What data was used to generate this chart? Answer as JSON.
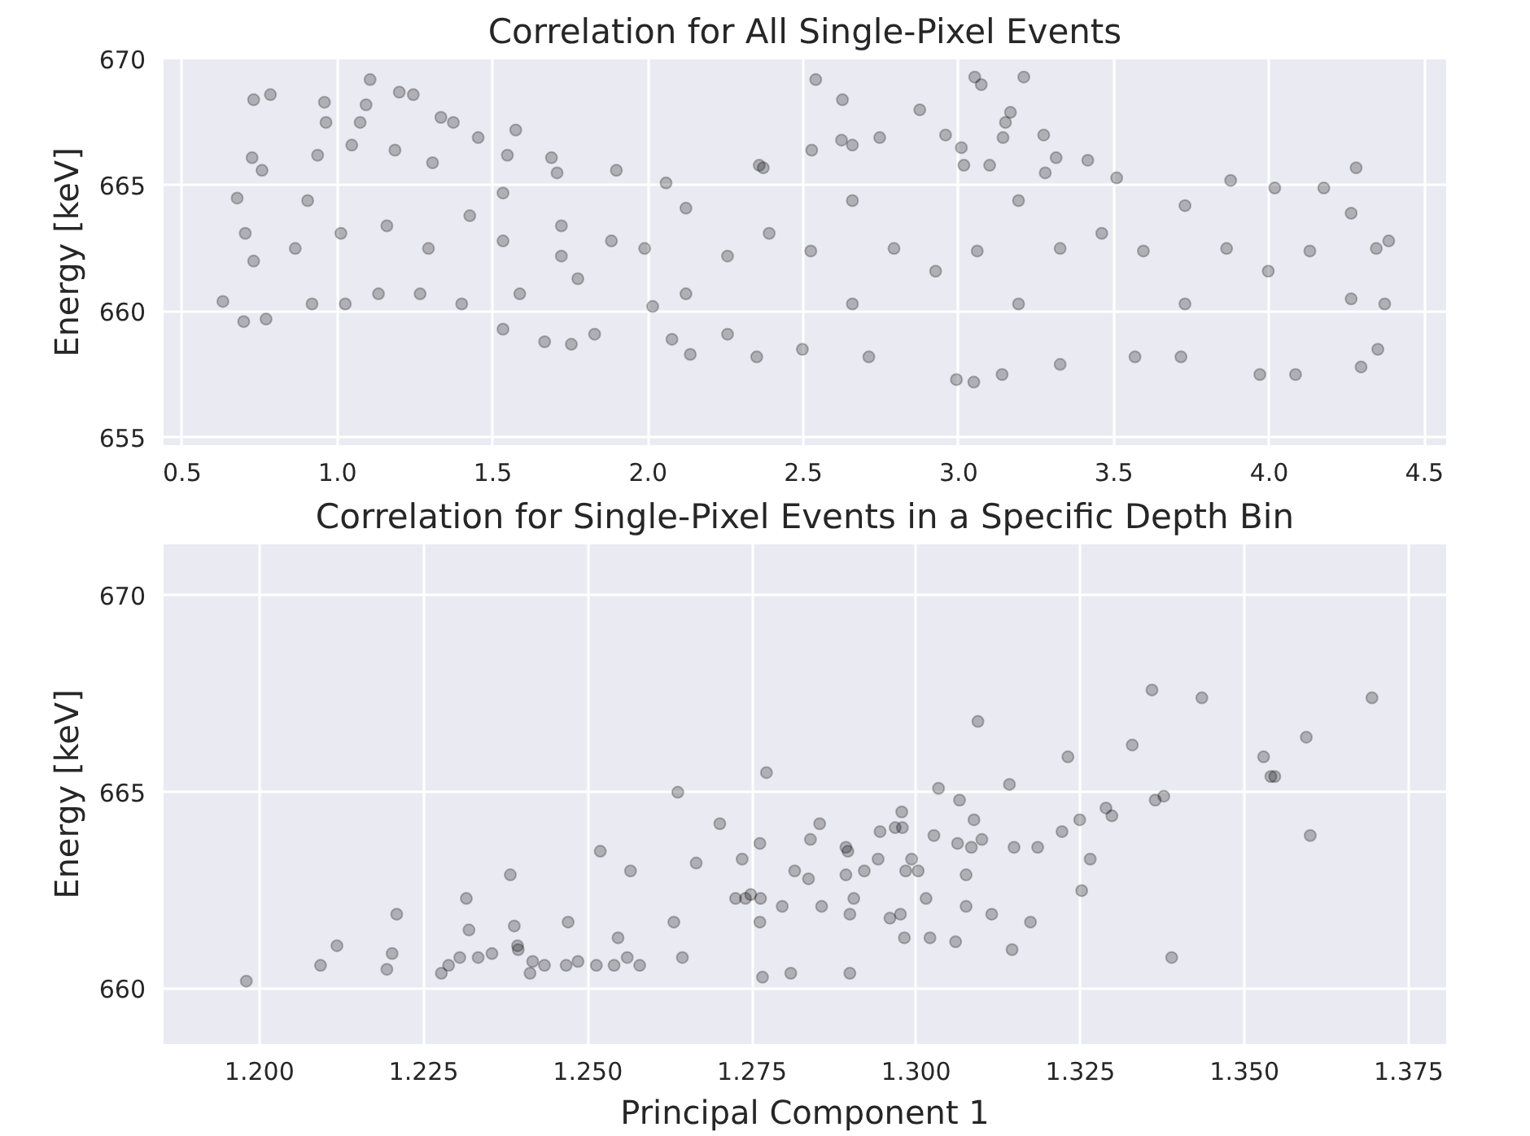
{
  "chart_data": [
    {
      "type": "scatter",
      "title": "Correlation for All Single-Pixel Events",
      "ylabel": "Energy [keV]",
      "xlim": [
        0.44,
        4.57
      ],
      "ylim": [
        654.7,
        670
      ],
      "xticks": [
        0.5,
        {
          "value": 1,
          "label": "1.0"
        },
        1.5,
        {
          "value": 2,
          "label": "2.0"
        },
        2.5,
        {
          "value": 3,
          "label": "3.0"
        },
        3.5,
        {
          "value": 4,
          "label": "4.0"
        },
        4.5
      ],
      "yticks": [
        655,
        660,
        665,
        670
      ],
      "grid": true,
      "marker": "circle",
      "series": [
        {
          "color": "#000000",
          "x": [
            0.73,
            0.784,
            0.725,
            0.757,
            0.631,
            0.698,
            0.77,
            0.677,
            0.703,
            0.73,
            0.958,
            0.963,
            0.936,
            0.904,
            0.864,
            0.918,
            1.105,
            1.092,
            1.073,
            1.046,
            1.011,
            1.025,
            1.199,
            1.244,
            1.185,
            1.159,
            1.132,
            1.333,
            1.373,
            1.306,
            1.293,
            1.266,
            1.453,
            1.426,
            1.4,
            1.574,
            1.547,
            1.533,
            1.533,
            1.533,
            1.587,
            1.689,
            1.707,
            1.667,
            1.753,
            1.828,
            1.898,
            1.721,
            1.774,
            1.882,
            2.015,
            2.058,
            2.077,
            2.136,
            2.256,
            2.358,
            2.371,
            2.35,
            2.497,
            2.54,
            2.626,
            2.527,
            2.623,
            2.658,
            2.746,
            2.711,
            2.875,
            2.958,
            3.009,
            3.017,
            2.993,
            3.052,
            3.073,
            3.21,
            3.167,
            3.151,
            3.143,
            3.1,
            3.049,
            3.14,
            3.274,
            3.314,
            3.416,
            3.279,
            3.327,
            3.509,
            3.568,
            3.716,
            3.876,
            3.97,
            4.018,
            4.085,
            4.176,
            4.28,
            4.296,
            4.35,
            4.385,
            4.372,
            1.721,
            1.989,
            2.256,
            2.524,
            2.792,
            3.06,
            3.327,
            3.595,
            3.863,
            4.131,
            4.345,
            2.122,
            2.658,
            3.193,
            3.729,
            4.264,
            2.122,
            2.658,
            3.193,
            3.729,
            4.264,
            2.39,
            2.926,
            3.461,
            3.997
          ],
          "values": [
            668.4,
            668.6,
            666.1,
            665.6,
            660.4,
            659.6,
            659.7,
            664.5,
            663.1,
            662.0,
            668.3,
            667.5,
            666.2,
            664.4,
            662.5,
            660.3,
            669.2,
            668.2,
            667.5,
            666.6,
            663.1,
            660.3,
            668.7,
            668.6,
            666.4,
            663.4,
            660.7,
            667.7,
            667.5,
            665.9,
            662.5,
            660.7,
            666.9,
            663.8,
            660.3,
            667.2,
            666.2,
            664.7,
            662.8,
            659.3,
            660.7,
            666.1,
            665.5,
            658.8,
            658.7,
            659.1,
            665.6,
            663.4,
            661.3,
            662.8,
            660.2,
            665.1,
            658.9,
            658.3,
            659.1,
            665.8,
            665.7,
            658.2,
            658.5,
            669.2,
            668.4,
            666.4,
            666.8,
            666.6,
            666.9,
            658.2,
            668.0,
            667.0,
            666.5,
            665.8,
            657.3,
            669.3,
            669.0,
            669.3,
            667.9,
            667.5,
            666.9,
            665.8,
            657.2,
            657.5,
            667.0,
            666.1,
            666.0,
            665.5,
            657.9,
            665.3,
            658.2,
            658.2,
            665.2,
            657.5,
            664.9,
            657.5,
            664.9,
            665.7,
            657.8,
            658.5,
            662.8,
            660.3,
            662.2,
            662.5,
            662.2,
            662.4,
            662.5,
            662.4,
            662.5,
            662.4,
            662.5,
            662.4,
            662.5,
            664.1,
            664.4,
            664.4,
            664.2,
            663.9,
            660.7,
            660.3,
            660.3,
            660.3,
            660.5,
            663.1,
            661.6,
            663.1,
            661.6
          ]
        }
      ]
    },
    {
      "type": "scatter",
      "title": "Correlation for Single-Pixel Events in a Specific Depth Bin",
      "xlabel": "Principal Component 1",
      "ylabel": "Energy [keV]",
      "xlim": [
        1.1854,
        1.3807
      ],
      "ylim": [
        658.6,
        671.3
      ],
      "xticks": [
        {
          "value": 1.2,
          "label": "1.200"
        },
        {
          "value": 1.225,
          "label": "1.225"
        },
        {
          "value": 1.25,
          "label": "1.250"
        },
        {
          "value": 1.275,
          "label": "1.275"
        },
        {
          "value": 1.3,
          "label": "1.300"
        },
        {
          "value": 1.325,
          "label": "1.325"
        },
        {
          "value": 1.35,
          "label": "1.350"
        },
        {
          "value": 1.375,
          "label": "1.375"
        }
      ],
      "yticks": [
        660,
        665,
        670
      ],
      "grid": true,
      "marker": "circle",
      "series": [
        {
          "color": "#000000",
          "x": [
            1.198,
            1.2093,
            1.2118,
            1.2194,
            1.2202,
            1.2209,
            1.2277,
            1.2288,
            1.2305,
            1.2315,
            1.2319,
            1.2333,
            1.2354,
            1.2382,
            1.2388,
            1.2393,
            1.2394,
            1.2412,
            1.2416,
            1.2434,
            1.2467,
            1.247,
            1.2485,
            1.2513,
            1.2519,
            1.254,
            1.2546,
            1.256,
            1.2565,
            1.2579,
            1.2631,
            1.2637,
            1.2644,
            1.2665,
            1.2701,
            1.2725,
            1.2735,
            1.274,
            1.2748,
            1.2762,
            1.2763,
            1.2762,
            1.2766,
            1.2772,
            1.2796,
            1.2809,
            1.2815,
            1.2836,
            1.2839,
            1.2853,
            1.2856,
            1.2893,
            1.2896,
            1.2893,
            1.2899,
            1.2899,
            1.2905,
            1.2921,
            1.2942,
            1.2945,
            1.296,
            1.2968,
            1.2976,
            1.2978,
            1.2979,
            1.2982,
            1.2984,
            1.2993,
            1.3003,
            1.3015,
            1.3021,
            1.3027,
            1.3034,
            1.306,
            1.3063,
            1.3066,
            1.3076,
            1.3076,
            1.3084,
            1.3088,
            1.3094,
            1.31,
            1.3115,
            1.3142,
            1.3146,
            1.3149,
            1.3174,
            1.3185,
            1.3222,
            1.3231,
            1.3249,
            1.3252,
            1.3265,
            1.3289,
            1.3298,
            1.3329,
            1.3359,
            1.3364,
            1.3377,
            1.3389,
            1.3435,
            1.3529,
            1.354,
            1.3546,
            1.3594,
            1.36,
            1.3694
          ],
          "values": [
            660.2,
            660.6,
            661.1,
            660.5,
            660.9,
            661.9,
            660.4,
            660.6,
            660.8,
            662.3,
            661.5,
            660.8,
            660.9,
            662.9,
            661.6,
            661.1,
            661.0,
            660.4,
            660.7,
            660.6,
            660.6,
            661.7,
            660.7,
            660.6,
            663.5,
            660.6,
            661.3,
            660.8,
            663.0,
            660.6,
            661.7,
            665.0,
            660.8,
            663.2,
            664.2,
            662.3,
            663.3,
            662.3,
            662.4,
            663.7,
            662.3,
            661.7,
            660.3,
            665.5,
            662.1,
            660.4,
            663.0,
            662.8,
            663.8,
            664.2,
            662.1,
            663.6,
            663.5,
            662.9,
            661.9,
            660.4,
            662.3,
            663.0,
            663.3,
            664.0,
            661.8,
            664.1,
            661.9,
            664.5,
            664.1,
            661.3,
            663.0,
            663.3,
            663.0,
            662.3,
            661.3,
            663.9,
            665.1,
            661.2,
            663.7,
            664.8,
            662.9,
            662.1,
            663.6,
            664.3,
            666.8,
            663.8,
            661.9,
            665.2,
            661.0,
            663.6,
            661.7,
            663.6,
            664.0,
            665.9,
            664.3,
            662.5,
            663.3,
            664.6,
            664.4,
            666.2,
            667.6,
            664.8,
            664.9,
            660.8,
            667.4,
            665.9,
            665.4,
            665.4,
            666.4,
            663.9,
            667.4
          ]
        }
      ]
    }
  ]
}
